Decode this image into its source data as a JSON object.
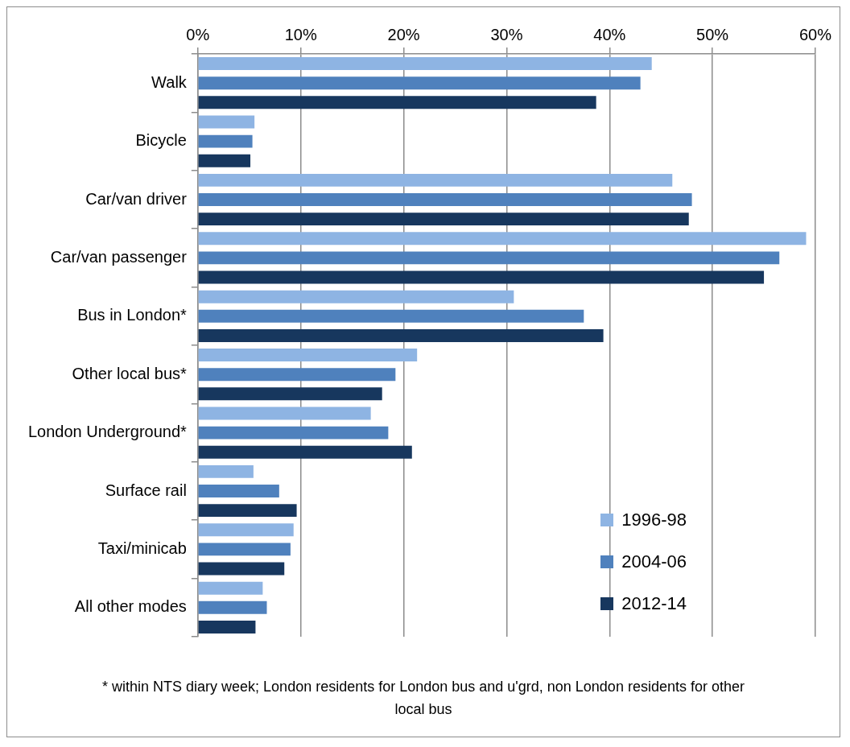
{
  "chart_data": {
    "type": "bar",
    "orientation": "horizontal",
    "categories": [
      "Walk",
      "Bicycle",
      "Car/van driver",
      "Car/van passenger",
      "Bus in London*",
      "Other local bus*",
      "London Underground*",
      "Surface rail",
      "Taxi/minicab",
      "All other modes"
    ],
    "series": [
      {
        "name": "1996-98",
        "color": "#8eb4e3",
        "values": [
          44.1,
          5.5,
          46.1,
          59.1,
          30.7,
          21.3,
          16.8,
          5.4,
          9.3,
          6.3
        ]
      },
      {
        "name": "2004-06",
        "color": "#4f81bd",
        "values": [
          43.0,
          5.3,
          48.0,
          56.5,
          37.5,
          19.2,
          18.5,
          7.9,
          9.0,
          6.7
        ]
      },
      {
        "name": "2012-14",
        "color": "#17375e",
        "values": [
          38.7,
          5.1,
          47.7,
          55.0,
          39.4,
          17.9,
          20.8,
          9.6,
          8.4,
          5.6
        ]
      }
    ],
    "xlim": [
      0,
      60
    ],
    "xticks": [
      {
        "value": 0,
        "label": "0%"
      },
      {
        "value": 10,
        "label": "10%"
      },
      {
        "value": 20,
        "label": "20%"
      },
      {
        "value": 30,
        "label": "30%"
      },
      {
        "value": 40,
        "label": "40%"
      },
      {
        "value": 50,
        "label": "50%"
      },
      {
        "value": 60,
        "label": "60%"
      }
    ],
    "grid": "x",
    "legend": "bottom right",
    "annotations": [
      "* within NTS diary week; London residents for London bus and u'grd, non London residents for other local bus"
    ]
  }
}
